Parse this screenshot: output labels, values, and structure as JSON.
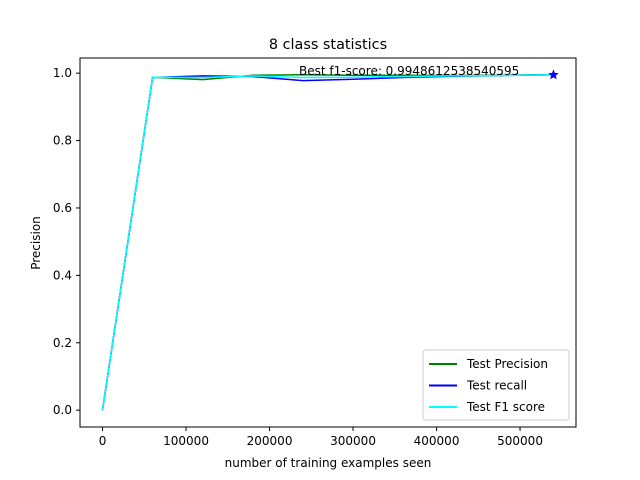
{
  "chart_data": {
    "type": "line",
    "title": "8 class statistics",
    "xlabel": "number of training examples seen",
    "ylabel": "Precision",
    "xlim": [
      -27000,
      567000
    ],
    "ylim": [
      -0.05,
      1.045
    ],
    "xticks": [
      0,
      100000,
      200000,
      300000,
      400000,
      500000
    ],
    "xtick_labels": [
      "0",
      "100000",
      "200000",
      "300000",
      "400000",
      "500000"
    ],
    "yticks": [
      0.0,
      0.2,
      0.4,
      0.6,
      0.8,
      1.0
    ],
    "ytick_labels": [
      "0.0",
      "0.2",
      "0.4",
      "0.6",
      "0.8",
      "1.0"
    ],
    "grid": false,
    "legend_position": "lower-right",
    "x": [
      0,
      60000,
      120000,
      180000,
      240000,
      300000,
      360000,
      420000,
      480000,
      540000
    ],
    "series": [
      {
        "name": "Test Precision",
        "color": "#008000",
        "values": [
          0.0,
          0.988,
          0.981,
          0.994,
          0.995,
          0.994,
          0.994,
          0.993,
          0.994,
          0.995
        ]
      },
      {
        "name": "Test recall",
        "color": "#0000ff",
        "values": [
          0.0,
          0.987,
          0.992,
          0.99,
          0.978,
          0.982,
          0.987,
          0.991,
          0.993,
          0.995
        ]
      },
      {
        "name": "Test F1 score",
        "color": "#00ffff",
        "values": [
          0.0,
          0.988,
          0.987,
          0.992,
          0.987,
          0.988,
          0.99,
          0.992,
          0.993,
          0.995
        ]
      }
    ],
    "best_marker": {
      "x": 540000,
      "y": 0.9948612538540595,
      "color": "#0000ff",
      "symbol": "star"
    },
    "annotation": {
      "text": "Best f1-score: 0.9948612538540595",
      "x": 235000,
      "y": 1.0
    }
  }
}
